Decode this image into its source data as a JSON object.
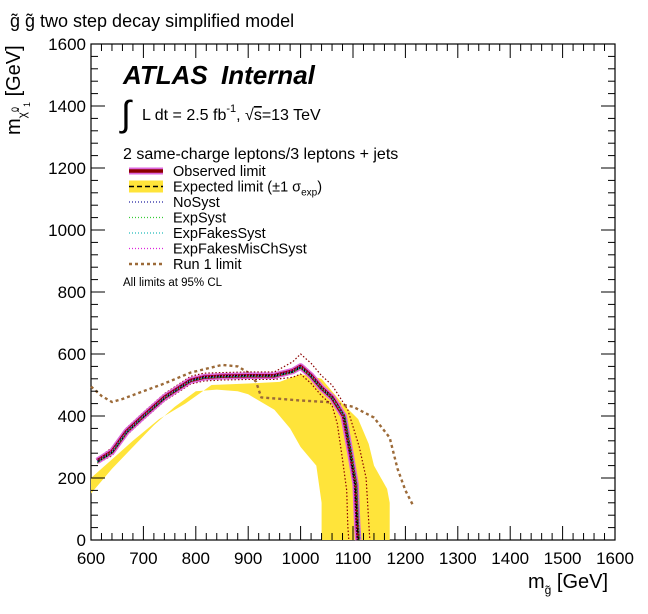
{
  "chart_data": {
    "type": "line",
    "title": "g̃ g̃ two step decay simplified model",
    "label_main": "ATLAS",
    "label_sub": "Internal",
    "lumi": {
      "integral": "∫",
      "pre": "L dt = 2.5 fb",
      "sup": "-1",
      "sep": ", ",
      "sqrt": "√",
      "s": "s",
      "energy": "=13 TeV"
    },
    "selection": "2 same-charge leptons/3 leptons + jets",
    "note": "All limits at 95% CL",
    "xlabel": {
      "main": "m",
      "sub": "g̃",
      "unit": " [GeV]"
    },
    "ylabel": {
      "main": "m",
      "sub": "χ̃",
      "subsup": "0",
      "subsub": "1",
      "unit": " [GeV]"
    },
    "xlim": [
      600,
      1600
    ],
    "ylim": [
      0,
      1600
    ],
    "xticks": [
      "600",
      "700",
      "800",
      "900",
      "1000",
      "1100",
      "1200",
      "1300",
      "1400",
      "1500",
      "1600"
    ],
    "yticks": [
      "0",
      "200",
      "400",
      "600",
      "800",
      "1000",
      "1200",
      "1400",
      "1600"
    ],
    "legend": [
      {
        "key": "observed",
        "label": "Observed limit"
      },
      {
        "key": "expected",
        "label": "Expected limit (±1 σ",
        "sub": "exp",
        "tail": ")"
      },
      {
        "key": "nosyst",
        "label": "NoSyst"
      },
      {
        "key": "expsyst",
        "label": "ExpSyst"
      },
      {
        "key": "expfakes",
        "label": "ExpFakesSyst"
      },
      {
        "key": "expfakesmis",
        "label": "ExpFakesMisChSyst"
      },
      {
        "key": "run1",
        "label": "Run 1 limit"
      }
    ],
    "colors": {
      "observed": "#8b0000",
      "observed_band": "#dd66dd",
      "expected": "#000000",
      "band": "#ffe43a",
      "nosyst": "#2020a0",
      "expsyst": "#33cc33",
      "expfakes": "#22bbbb",
      "expfakesmis": "#dd22dd",
      "run1": "#9c6a38"
    },
    "series": {
      "observed": {
        "x": [
          612,
          640,
          668,
          700,
          740,
          790,
          815,
          850,
          900,
          950,
          985,
          1000,
          1020,
          1040,
          1060,
          1082,
          1095,
          1105,
          1108,
          1110
        ],
        "y": [
          255,
          285,
          350,
          400,
          460,
          515,
          525,
          528,
          530,
          530,
          545,
          560,
          530,
          490,
          460,
          400,
          280,
          180,
          50,
          0
        ]
      },
      "nosyst": {
        "x": [
          612,
          640,
          668,
          700,
          740,
          790,
          815,
          850,
          900,
          950,
          985,
          1000,
          1020,
          1040,
          1060,
          1082,
          1093,
          1102,
          1106,
          1108
        ],
        "y": [
          255,
          285,
          350,
          400,
          460,
          515,
          525,
          528,
          530,
          530,
          545,
          560,
          530,
          490,
          460,
          400,
          280,
          180,
          50,
          0
        ]
      },
      "expsyst": {
        "x": [
          612,
          640,
          668,
          700,
          740,
          790,
          815,
          850,
          900,
          950,
          985,
          1000,
          1020,
          1040,
          1060,
          1084,
          1096,
          1106,
          1110,
          1112
        ],
        "y": [
          250,
          282,
          345,
          398,
          458,
          513,
          523,
          526,
          528,
          528,
          540,
          555,
          528,
          488,
          458,
          395,
          275,
          175,
          50,
          0
        ]
      },
      "expfakes": {
        "x": [
          612,
          640,
          668,
          700,
          740,
          790,
          815,
          850,
          900,
          950,
          985,
          1000,
          1020,
          1040,
          1060,
          1086,
          1098,
          1108,
          1112,
          1114
        ],
        "y": [
          252,
          284,
          348,
          398,
          458,
          513,
          523,
          526,
          528,
          528,
          543,
          558,
          528,
          488,
          458,
          398,
          278,
          178,
          50,
          0
        ]
      },
      "expfakesmis": {
        "x": [
          612,
          640,
          668,
          700,
          740,
          790,
          815,
          850,
          900,
          950,
          985,
          1000,
          1020,
          1040,
          1060,
          1080,
          1092,
          1102,
          1106,
          1108
        ],
        "y": [
          258,
          288,
          352,
          402,
          462,
          517,
          527,
          530,
          532,
          532,
          548,
          563,
          533,
          493,
          463,
          403,
          283,
          183,
          50,
          0
        ]
      },
      "expected": {
        "x": [
          612,
          640,
          668,
          700,
          740,
          790,
          815,
          850,
          900,
          950,
          985,
          1000,
          1020,
          1040,
          1060,
          1083,
          1095,
          1104,
          1108,
          1110
        ],
        "y": [
          252,
          283,
          348,
          398,
          458,
          515,
          525,
          528,
          530,
          530,
          542,
          558,
          528,
          490,
          460,
          398,
          278,
          178,
          50,
          0
        ]
      },
      "obs_up": {
        "x": [
          612,
          640,
          668,
          700,
          740,
          790,
          815,
          850,
          900,
          950,
          985,
          1000,
          1020,
          1040,
          1060,
          1090,
          1112,
          1125,
          1130,
          1132
        ],
        "y": [
          262,
          298,
          362,
          412,
          472,
          528,
          538,
          540,
          542,
          542,
          575,
          600,
          570,
          530,
          500,
          420,
          300,
          200,
          60,
          0
        ]
      },
      "obs_dn": {
        "x": [
          612,
          640,
          668,
          700,
          740,
          790,
          815,
          850,
          900,
          950,
          985,
          1000,
          1020,
          1040,
          1060,
          1070,
          1080,
          1088,
          1090,
          1092
        ],
        "y": [
          248,
          272,
          338,
          388,
          448,
          503,
          513,
          516,
          518,
          518,
          525,
          535,
          505,
          465,
          435,
          375,
          260,
          160,
          45,
          0
        ]
      },
      "band": {
        "x": [
          600,
          640,
          680,
          730,
          780,
          830,
          900,
          960,
          1000,
          1040,
          1060,
          1080,
          1110,
          1130,
          1140,
          1165,
          1170,
          1170,
          1040,
          1040,
          1030,
          1000,
          980,
          950,
          920,
          900,
          880,
          840,
          800,
          760,
          720,
          680,
          640,
          600
        ],
        "y": [
          200,
          260,
          320,
          390,
          440,
          500,
          505,
          510,
          535,
          520,
          480,
          440,
          390,
          310,
          240,
          165,
          120,
          0,
          0,
          120,
          240,
          300,
          360,
          420,
          450,
          470,
          480,
          485,
          480,
          430,
          370,
          300,
          230,
          150
        ]
      },
      "run1": {
        "x": [
          600,
          620,
          640,
          660,
          700,
          740,
          790,
          850,
          880,
          900,
          915,
          925,
          1000,
          1050,
          1100,
          1140,
          1170,
          1185,
          1200,
          1215
        ],
        "y": [
          495,
          465,
          445,
          455,
          480,
          505,
          540,
          565,
          560,
          540,
          510,
          460,
          450,
          445,
          430,
          395,
          330,
          230,
          160,
          110
        ]
      }
    }
  }
}
